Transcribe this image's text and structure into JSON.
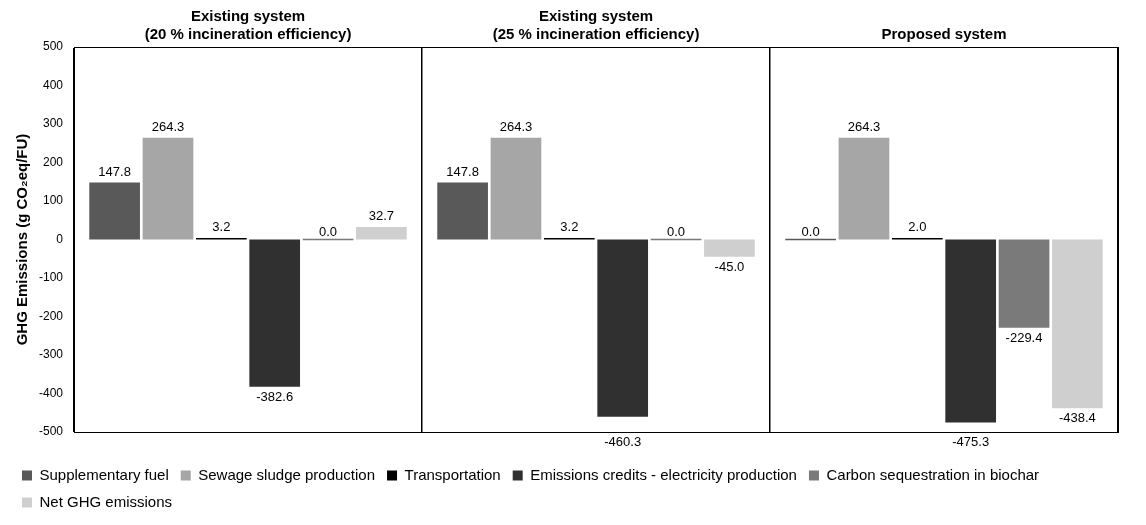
{
  "chart_data": {
    "type": "bar",
    "categories": [
      "Existing system\n(20 % incineration efficiency)",
      "Existing system\n(25 % incineration efficiency)",
      "Proposed system"
    ],
    "ylabel": "GHG Emissions (g CO₂eq/FU)",
    "ylim": [
      -500,
      500
    ],
    "yticks": [
      -500,
      -400,
      -300,
      -200,
      -100,
      0,
      100,
      200,
      300,
      400,
      500
    ],
    "grid": "x",
    "legend": "bottom",
    "series": [
      {
        "name": "Supplementary fuel",
        "color": "#595959",
        "values": [
          147.8,
          147.8,
          0.0
        ],
        "value_labels": [
          "147.8",
          "147.8",
          "0.0"
        ]
      },
      {
        "name": "Sewage sludge production",
        "color": "#a6a6a6",
        "values": [
          264.3,
          264.3,
          264.3
        ],
        "value_labels": [
          "264.3",
          "264.3",
          "264.3"
        ]
      },
      {
        "name": "Transportation",
        "color": "#000000",
        "values": [
          3.2,
          3.2,
          2.0
        ],
        "value_labels": [
          "3.2",
          "3.2",
          "2.0"
        ]
      },
      {
        "name": "Emissions credits - electricity production",
        "color": "#303030",
        "values": [
          -382.6,
          -460.3,
          -475.3
        ],
        "value_labels": [
          "-382.6",
          "-460.3",
          "-475.3"
        ]
      },
      {
        "name": "Carbon sequestration in biochar",
        "color": "#7a7a7a",
        "values": [
          0.0,
          0.0,
          -229.4
        ],
        "value_labels": [
          "0.0",
          "0.0",
          "-229.4"
        ]
      },
      {
        "name": "Net GHG emissions",
        "color": "#cfcfcf",
        "values": [
          32.7,
          -45.0,
          -438.4
        ],
        "value_labels": [
          "32.7",
          "-45.0",
          "-438.4"
        ]
      }
    ]
  }
}
